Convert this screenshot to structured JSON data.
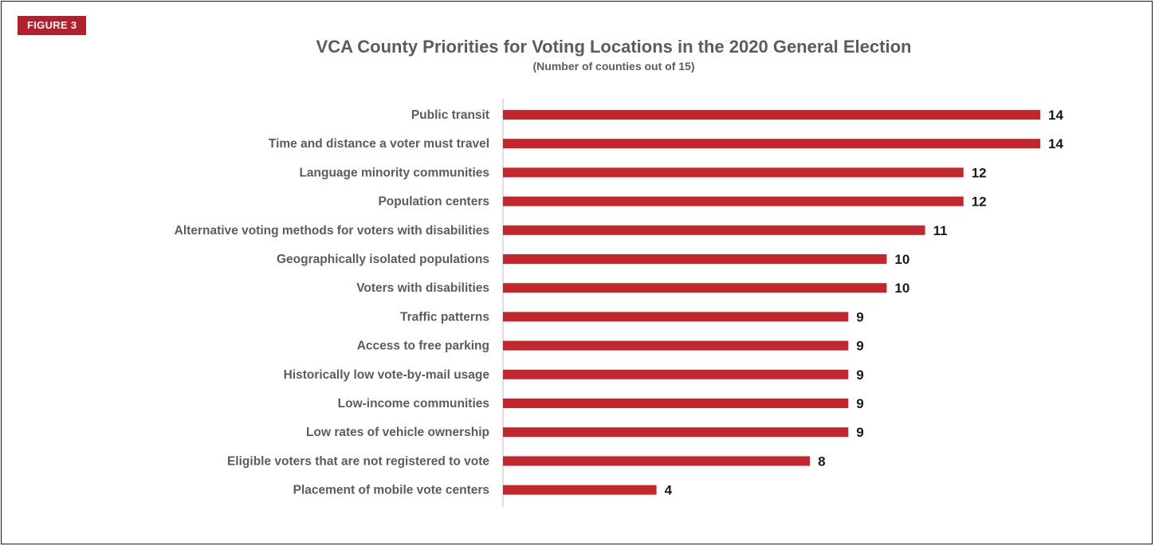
{
  "figure_label": "FIGURE 3",
  "chart_data": {
    "type": "bar",
    "orientation": "horizontal",
    "title": "VCA County Priorities for Voting Locations in the 2020 General Election",
    "subtitle": "(Number of counties out of 15)",
    "categories": [
      "Public transit",
      "Time and distance a voter must travel",
      "Language minority communities",
      "Population centers",
      "Alternative voting methods for voters with disabilities",
      "Geographically isolated populations",
      "Voters with disabilities",
      "Traffic patterns",
      "Access to free parking",
      "Historically low vote-by-mail usage",
      "Low-income communities",
      "Low rates of vehicle ownership",
      "Eligible voters that are not registered to vote",
      "Placement of mobile vote centers"
    ],
    "values": [
      14,
      14,
      12,
      12,
      11,
      10,
      10,
      9,
      9,
      9,
      9,
      9,
      8,
      4
    ],
    "xlim": [
      0,
      14
    ],
    "data_labels": true,
    "grid": false,
    "legend": "none",
    "bar_color": "#c1272d",
    "axis_color": "#bfbfbf"
  }
}
